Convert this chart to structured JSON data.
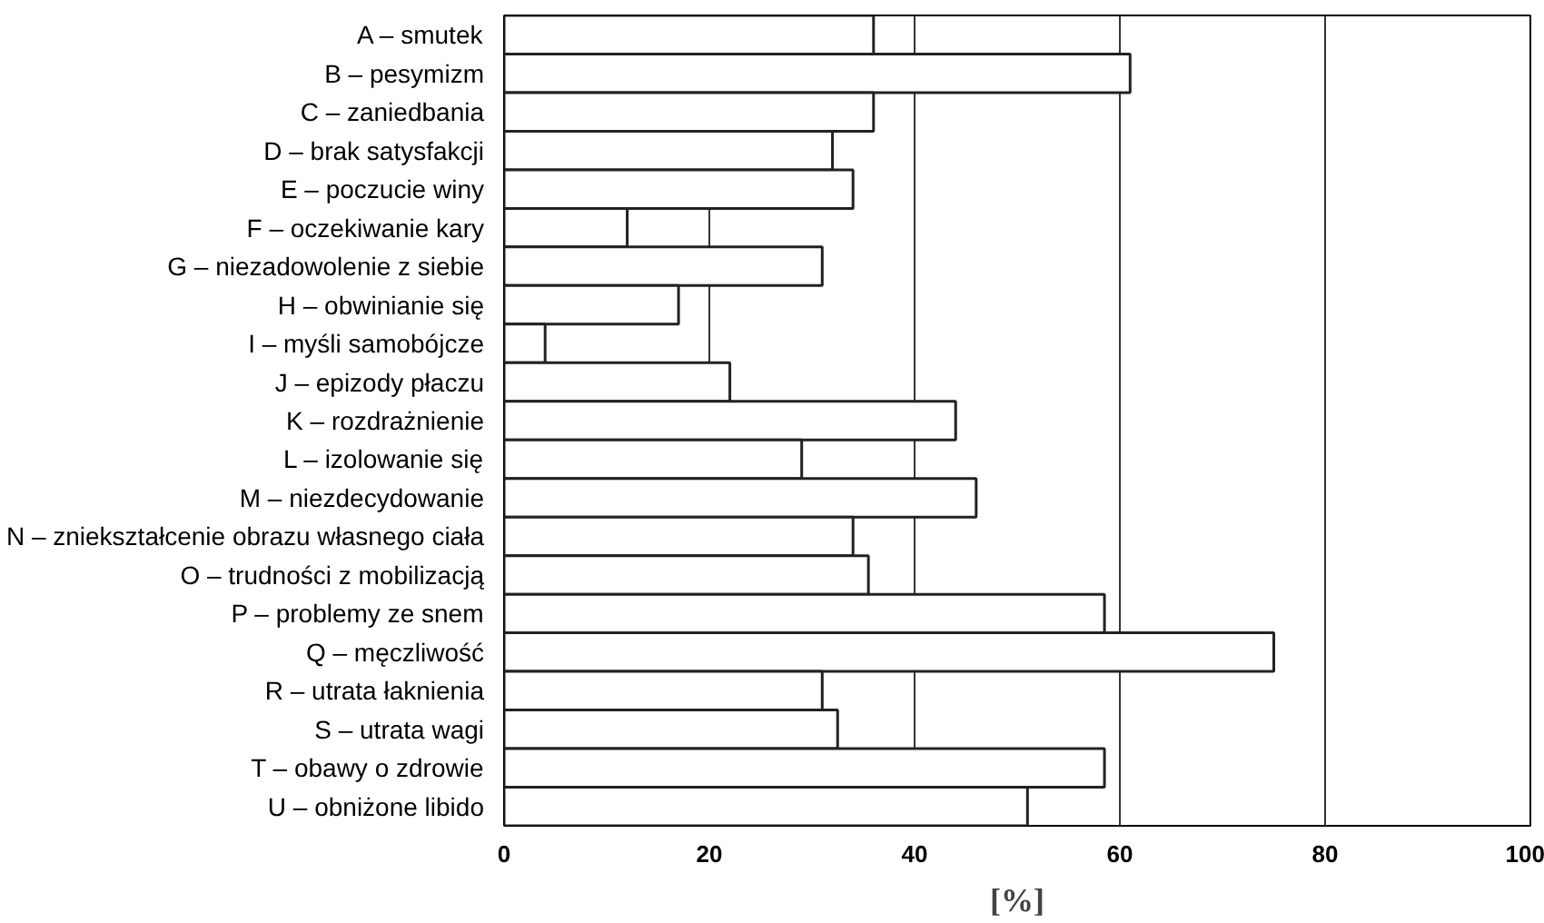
{
  "chart_data": {
    "type": "bar",
    "orientation": "horizontal",
    "xlabel": "[%]",
    "categories": [
      "A – smutek",
      "B – pesymizm",
      "C – zaniedbania",
      "D – brak satysfakcji",
      "E – poczucie winy",
      "F – oczekiwanie kary",
      "G – niezadowolenie z siebie",
      "H – obwinianie się",
      "I – myśli samobójcze",
      "J – epizody płaczu",
      "K – rozdrażnienie",
      "L – izolowanie się",
      "M – niezdecydowanie",
      "N – zniekształcenie obrazu własnego ciała",
      "O – trudności z mobilizacją",
      "P – problemy ze snem",
      "Q – męczliwość",
      "R – utrata łaknienia",
      "S – utrata wagi",
      "T – obawy o zdrowie",
      "U – obniżone libido"
    ],
    "values": [
      36,
      61,
      36,
      32,
      34,
      12,
      31,
      17,
      4,
      22,
      44,
      29,
      46,
      34,
      35.5,
      58.5,
      75,
      31,
      32.5,
      58.5,
      51
    ],
    "color": "#ffffff",
    "xlim": [
      0,
      100
    ],
    "xticks": [
      0,
      20,
      40,
      60,
      80,
      100
    ],
    "grid": "x"
  }
}
